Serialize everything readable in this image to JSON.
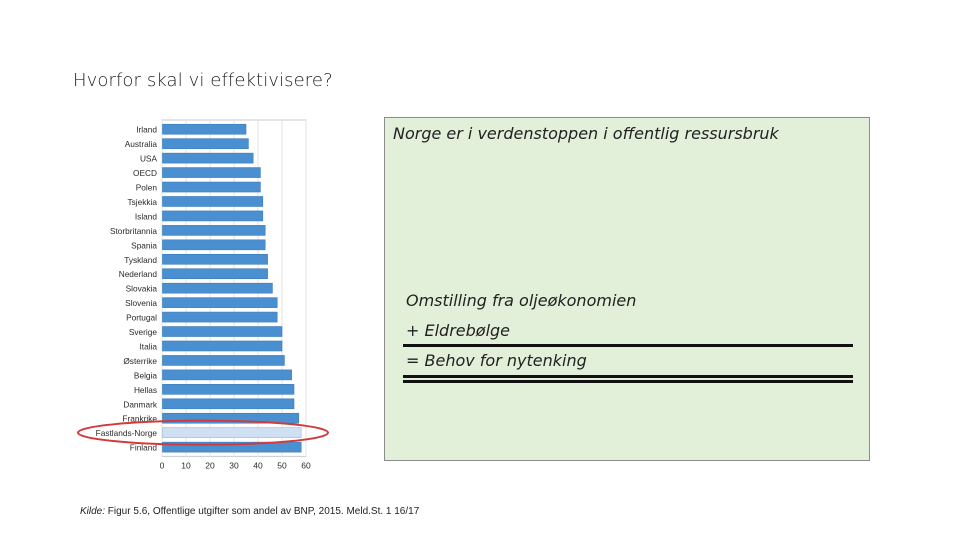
{
  "slide": {
    "title": "Hvorfor skal vi effektivisere?"
  },
  "textbox": {
    "headline": "Norge er i verdenstoppen i offentlig ressursbruk",
    "line1": "Omstilling fra oljeøkonomien",
    "line2": "+ Eldrebølge",
    "line3": "= Behov for nytenking"
  },
  "source": {
    "prefix": "Kilde:",
    "text": " Figur 5.6, Offentlige utgifter som andel av BNP, 2015. Meld.St. 1 16/17"
  },
  "colors": {
    "bar": "#4a90d0",
    "bar_highlight": "#cfe0f3",
    "ellipse": "#d23b3b",
    "box_bg": "#e2efd9"
  },
  "chart_data": {
    "type": "bar",
    "orientation": "horizontal",
    "categories": [
      "Irland",
      "Australia",
      "USA",
      "OECD",
      "Polen",
      "Tsjekkia",
      "Island",
      "Storbritannia",
      "Spania",
      "Tyskland",
      "Nederland",
      "Slovakia",
      "Slovenia",
      "Portugal",
      "Sverige",
      "Italia",
      "Østerrike",
      "Belgia",
      "Hellas",
      "Danmark",
      "Frankrike",
      "Fastlands-Norge",
      "Finland"
    ],
    "values": [
      35,
      36,
      38,
      41,
      41,
      42,
      42,
      43,
      43,
      44,
      44,
      46,
      48,
      48,
      50,
      50,
      51,
      54,
      55,
      55,
      57,
      58,
      58
    ],
    "highlight": "Fastlands-Norge",
    "xticks": [
      0,
      10,
      20,
      30,
      40,
      50,
      60
    ],
    "xlim": [
      0,
      60
    ],
    "title": "",
    "xlabel": "",
    "ylabel": ""
  }
}
